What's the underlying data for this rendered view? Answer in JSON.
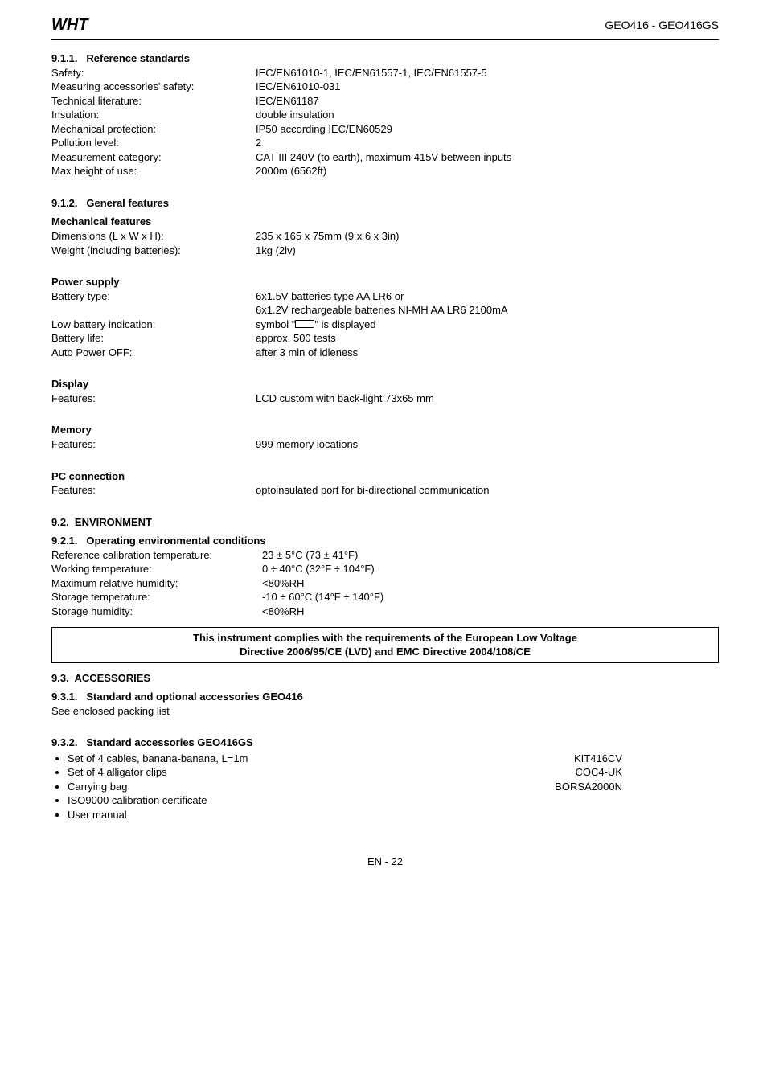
{
  "header": {
    "logo_text": "WHT",
    "doc_title": "GEO416 - GEO416GS"
  },
  "s911": {
    "num": "9.1.1.",
    "title": "Reference standards",
    "rows": [
      {
        "k": "Safety:",
        "v": "IEC/EN61010-1, IEC/EN61557-1, IEC/EN61557-5"
      },
      {
        "k": "Measuring accessories' safety:",
        "v": "IEC/EN61010-031"
      },
      {
        "k": "Technical literature:",
        "v": "IEC/EN61187"
      },
      {
        "k": "Insulation:",
        "v": "double insulation"
      },
      {
        "k": "Mechanical protection:",
        "v": "IP50 according IEC/EN60529"
      },
      {
        "k": "Pollution level:",
        "v": "2"
      },
      {
        "k": "Measurement category:",
        "v": "CAT III 240V (to earth), maximum 415V between inputs"
      },
      {
        "k": "Max height of use:",
        "v": "2000m (6562ft)"
      }
    ]
  },
  "s912": {
    "num": "9.1.2.",
    "title": "General features",
    "sub1": "Mechanical features",
    "rows1": [
      {
        "k": "Dimensions (L x W x H):",
        "v": "235 x 165 x 75mm (9 x 6 x 3in)"
      },
      {
        "k": "Weight (including batteries):",
        "v": "1kg (2lv)"
      }
    ],
    "sub2": "Power supply",
    "batt_type_k": "Battery type:",
    "batt_type_v1": "6x1.5V batteries type AA LR6 or",
    "batt_type_v2": "6x1.2V rechargeable batteries NI-MH AA LR6 2100mA",
    "low_batt_k": "Low battery indication:",
    "low_batt_pre": "symbol \"",
    "low_batt_post": "\" is displayed",
    "rows2b": [
      {
        "k": "Battery life:",
        "v": "approx. 500 tests"
      },
      {
        "k": "Auto Power OFF:",
        "v": "after 3 min of idleness"
      }
    ],
    "sub3": "Display",
    "rows3": [
      {
        "k": "Features:",
        "v": "LCD custom with back-light 73x65 mm"
      }
    ],
    "sub4": "Memory",
    "rows4": [
      {
        "k": "Features:",
        "v": "999 memory locations"
      }
    ],
    "sub5": "PC connection",
    "rows5": [
      {
        "k": "Features:",
        "v": "optoinsulated port for bi-directional communication"
      }
    ]
  },
  "s92": {
    "num": "9.2.",
    "title": "ENVIRONMENT"
  },
  "s921": {
    "num": "9.2.1.",
    "title": "Operating environmental conditions",
    "rows": [
      {
        "k": "Reference calibration temperature:",
        "v": "23 ± 5°C (73 ± 41°F)"
      },
      {
        "k": "Working temperature:",
        "v": "0 ÷ 40°C (32°F ÷ 104°F)"
      },
      {
        "k": "Maximum relative humidity:",
        "v": "<80%RH"
      },
      {
        "k": "Storage temperature:",
        "v": "-10 ÷ 60°C (14°F ÷ 140°F)"
      },
      {
        "k": "Storage humidity:",
        "v": "<80%RH"
      }
    ]
  },
  "note": {
    "line1": "This instrument complies with the requirements of the European Low Voltage",
    "line2": "Directive 2006/95/CE (LVD) and EMC Directive 2004/108/CE"
  },
  "s93": {
    "num": "9.3.",
    "title": "ACCESSORIES"
  },
  "s931": {
    "num": "9.3.1.",
    "title": "Standard and optional accessories GEO416",
    "text": "See enclosed packing list"
  },
  "s932": {
    "num": "9.3.2.",
    "title": "Standard accessories GEO416GS",
    "items": [
      {
        "t": "Set of 4 cables, banana-banana, L=1m",
        "code": "KIT416CV"
      },
      {
        "t": "Set of 4 alligator clips",
        "code": "COC4-UK"
      },
      {
        "t": "Carrying bag",
        "code": "BORSA2000N"
      },
      {
        "t": "ISO9000 calibration certificate",
        "code": ""
      },
      {
        "t": "User manual",
        "code": ""
      }
    ]
  },
  "footer": "EN - 22"
}
